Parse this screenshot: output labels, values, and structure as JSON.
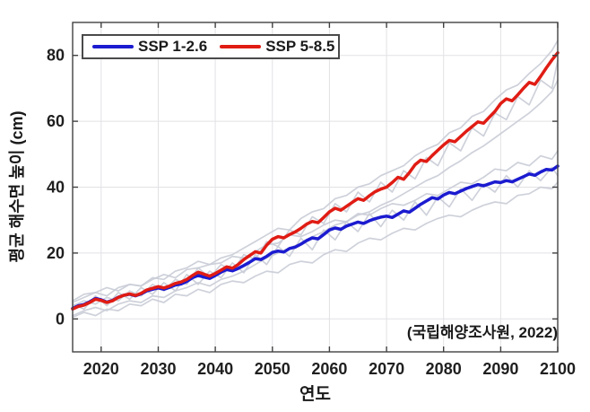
{
  "chart_data": {
    "type": "line",
    "xlabel": "연도",
    "ylabel": "평균 해수면 높이 (cm)",
    "annotation": "(국립해양조사원, 2022)",
    "xlim": [
      2015,
      2100
    ],
    "ylim": [
      -10,
      90
    ],
    "xticks": [
      2020,
      2030,
      2040,
      2050,
      2060,
      2070,
      2080,
      2090,
      2100
    ],
    "yticks": [
      0,
      20,
      40,
      60,
      80
    ],
    "grid": true,
    "legend_position": "top-left-inside",
    "legend": [
      "SSP 1-2.6",
      "SSP 5-8.5"
    ],
    "colors": {
      "ssp126": "#1b1bd0",
      "ssp585": "#e01c14",
      "ensemble": "#c9ccd6",
      "grid": "#e2e2e6",
      "axis": "#414141",
      "text": "#1f1f1f"
    },
    "series": [
      {
        "name": "SSP 1-2.6 ensemble member 1",
        "role": "ensemble",
        "color_key": "ensemble",
        "x": [
          2015,
          2017,
          2019,
          2021,
          2023,
          2025,
          2027,
          2029,
          2031,
          2033,
          2035,
          2037,
          2039,
          2041,
          2043,
          2045,
          2047,
          2049,
          2051,
          2053,
          2055,
          2057,
          2059,
          2061,
          2063,
          2065,
          2067,
          2069,
          2071,
          2073,
          2075,
          2077,
          2079,
          2081,
          2083,
          2085,
          2087,
          2089,
          2091,
          2093,
          2095,
          2097,
          2099,
          2100
        ],
        "values": [
          5.5,
          7.5,
          8.0,
          9.5,
          8.5,
          10.5,
          10.0,
          12.0,
          13.5,
          12.5,
          15.0,
          15.5,
          16.5,
          17.0,
          19.0,
          18.5,
          20.5,
          22.5,
          23.0,
          25.5,
          25.0,
          26.5,
          28.5,
          30.0,
          29.5,
          32.0,
          31.5,
          33.5,
          35.0,
          34.5,
          36.0,
          38.0,
          37.5,
          39.5,
          41.5,
          41.0,
          43.0,
          45.5,
          45.0,
          47.5,
          46.5,
          49.5,
          48.5,
          51.0
        ]
      },
      {
        "name": "SSP 1-2.6 ensemble member 2",
        "role": "ensemble",
        "color_key": "ensemble",
        "x": [
          2015,
          2017,
          2019,
          2021,
          2023,
          2025,
          2027,
          2029,
          2031,
          2033,
          2035,
          2037,
          2039,
          2041,
          2043,
          2045,
          2047,
          2049,
          2051,
          2053,
          2055,
          2057,
          2059,
          2061,
          2063,
          2065,
          2067,
          2069,
          2071,
          2073,
          2075,
          2077,
          2079,
          2081,
          2083,
          2085,
          2087,
          2089,
          2091,
          2093,
          2095,
          2097,
          2099,
          2100
        ],
        "values": [
          0.5,
          2.0,
          1.0,
          3.0,
          2.5,
          4.5,
          4.0,
          6.0,
          5.0,
          7.5,
          7.0,
          9.0,
          8.0,
          10.5,
          11.5,
          11.0,
          13.0,
          14.5,
          14.0,
          16.5,
          17.5,
          17.0,
          19.5,
          21.0,
          20.5,
          23.0,
          24.5,
          24.0,
          26.0,
          27.5,
          27.0,
          29.0,
          30.5,
          31.5,
          31.0,
          33.0,
          34.5,
          35.5,
          35.0,
          37.5,
          38.0,
          40.0,
          39.5,
          41.5
        ]
      },
      {
        "name": "SSP 1-2.6 ensemble member 3",
        "role": "ensemble",
        "color_key": "ensemble",
        "x": [
          2015,
          2017,
          2019,
          2021,
          2023,
          2025,
          2027,
          2029,
          2031,
          2033,
          2035,
          2037,
          2039,
          2041,
          2043,
          2045,
          2047,
          2049,
          2051,
          2053,
          2055,
          2057,
          2059,
          2061,
          2063,
          2065,
          2067,
          2069,
          2071,
          2073,
          2075,
          2077,
          2079,
          2081,
          2083,
          2085,
          2087,
          2089,
          2091,
          2093,
          2095,
          2097,
          2099,
          2100
        ],
        "values": [
          4.5,
          3.0,
          7.0,
          4.0,
          8.0,
          6.0,
          9.5,
          7.5,
          11.0,
          8.5,
          13.5,
          10.5,
          14.5,
          12.5,
          17.0,
          14.0,
          19.5,
          16.5,
          22.0,
          19.0,
          24.5,
          21.0,
          27.0,
          24.0,
          29.5,
          26.5,
          32.0,
          28.0,
          33.0,
          30.0,
          35.5,
          31.5,
          37.0,
          34.0,
          39.5,
          36.0,
          41.0,
          38.5,
          43.5,
          40.0,
          45.0,
          42.0,
          46.0,
          43.5
        ]
      },
      {
        "name": "SSP 5-8.5 ensemble member 1",
        "role": "ensemble",
        "color_key": "ensemble",
        "x": [
          2015,
          2017,
          2019,
          2021,
          2023,
          2025,
          2027,
          2029,
          2031,
          2033,
          2035,
          2037,
          2039,
          2041,
          2043,
          2045,
          2047,
          2049,
          2051,
          2053,
          2055,
          2057,
          2059,
          2061,
          2063,
          2065,
          2067,
          2069,
          2071,
          2073,
          2075,
          2077,
          2079,
          2081,
          2083,
          2085,
          2087,
          2089,
          2091,
          2093,
          2095,
          2097,
          2099,
          2100
        ],
        "values": [
          5.0,
          6.5,
          8.0,
          7.0,
          9.5,
          10.5,
          10.0,
          12.5,
          12.0,
          14.5,
          15.5,
          17.5,
          16.5,
          18.5,
          19.5,
          21.5,
          23.5,
          25.5,
          27.5,
          27.0,
          30.5,
          32.5,
          33.5,
          36.5,
          37.5,
          40.0,
          41.0,
          43.5,
          45.0,
          46.5,
          49.5,
          51.5,
          53.0,
          56.5,
          58.0,
          61.5,
          63.0,
          66.5,
          69.5,
          71.0,
          74.5,
          77.5,
          81.5,
          84.5
        ]
      },
      {
        "name": "SSP 5-8.5 ensemble member 2",
        "role": "ensemble",
        "color_key": "ensemble",
        "x": [
          2015,
          2017,
          2019,
          2021,
          2023,
          2025,
          2027,
          2029,
          2031,
          2033,
          2035,
          2037,
          2039,
          2041,
          2043,
          2045,
          2047,
          2049,
          2051,
          2053,
          2055,
          2057,
          2059,
          2061,
          2063,
          2065,
          2067,
          2069,
          2071,
          2073,
          2075,
          2077,
          2079,
          2081,
          2083,
          2085,
          2087,
          2089,
          2091,
          2093,
          2095,
          2097,
          2099,
          2100
        ],
        "values": [
          1.0,
          2.5,
          3.5,
          2.5,
          4.5,
          5.5,
          5.0,
          7.0,
          6.5,
          8.5,
          9.5,
          11.0,
          10.0,
          12.0,
          13.0,
          14.5,
          16.5,
          18.5,
          20.0,
          21.5,
          23.0,
          25.0,
          26.5,
          28.5,
          29.5,
          31.5,
          32.5,
          34.5,
          36.0,
          38.0,
          40.0,
          42.0,
          43.5,
          46.0,
          48.0,
          50.5,
          52.5,
          55.0,
          57.5,
          60.0,
          62.5,
          65.5,
          69.0,
          72.5
        ]
      },
      {
        "name": "SSP 5-8.5 ensemble member 3",
        "role": "ensemble",
        "color_key": "ensemble",
        "x": [
          2015,
          2017,
          2019,
          2021,
          2023,
          2025,
          2027,
          2029,
          2031,
          2033,
          2035,
          2037,
          2039,
          2041,
          2043,
          2045,
          2047,
          2049,
          2051,
          2053,
          2055,
          2057,
          2059,
          2061,
          2063,
          2065,
          2067,
          2069,
          2071,
          2073,
          2075,
          2077,
          2079,
          2081,
          2083,
          2085,
          2087,
          2089,
          2091,
          2093,
          2095,
          2097,
          2099,
          2100
        ],
        "values": [
          4.0,
          5.5,
          4.5,
          6.5,
          5.5,
          8.5,
          7.0,
          10.5,
          8.5,
          12.0,
          10.5,
          15.5,
          12.5,
          16.5,
          14.5,
          19.5,
          18.0,
          23.5,
          22.0,
          27.0,
          25.5,
          31.0,
          29.0,
          35.0,
          32.5,
          38.5,
          35.5,
          41.5,
          38.5,
          45.0,
          42.5,
          49.0,
          46.5,
          53.5,
          51.0,
          58.0,
          55.5,
          62.5,
          60.5,
          67.5,
          65.0,
          72.5,
          70.0,
          78.5
        ]
      },
      {
        "name": "SSP 1-2.6",
        "role": "mean",
        "color_key": "ssp126",
        "x": [
          2015,
          2016,
          2017,
          2018,
          2019,
          2020,
          2021,
          2022,
          2023,
          2024,
          2025,
          2026,
          2027,
          2028,
          2029,
          2030,
          2031,
          2032,
          2033,
          2034,
          2035,
          2036,
          2037,
          2038,
          2039,
          2040,
          2041,
          2042,
          2043,
          2044,
          2045,
          2046,
          2047,
          2048,
          2049,
          2050,
          2051,
          2052,
          2053,
          2054,
          2055,
          2056,
          2057,
          2058,
          2059,
          2060,
          2061,
          2062,
          2063,
          2064,
          2065,
          2066,
          2067,
          2068,
          2069,
          2070,
          2071,
          2072,
          2073,
          2074,
          2075,
          2076,
          2077,
          2078,
          2079,
          2080,
          2081,
          2082,
          2083,
          2084,
          2085,
          2086,
          2087,
          2088,
          2089,
          2090,
          2091,
          2092,
          2093,
          2094,
          2095,
          2096,
          2097,
          2098,
          2099,
          2100
        ],
        "values": [
          3.2,
          4.0,
          4.4,
          5.2,
          6.2,
          5.8,
          5.1,
          5.6,
          6.6,
          7.2,
          7.5,
          7.0,
          7.6,
          8.5,
          9.0,
          9.4,
          9.0,
          9.6,
          10.3,
          10.6,
          11.4,
          12.5,
          13.2,
          12.7,
          12.3,
          13.2,
          14.2,
          15.0,
          14.6,
          15.3,
          16.2,
          17.2,
          18.3,
          18.0,
          19.0,
          20.2,
          20.6,
          20.3,
          21.4,
          21.8,
          22.7,
          23.8,
          24.6,
          24.3,
          25.6,
          27.0,
          27.6,
          27.2,
          28.2,
          28.8,
          29.4,
          29.0,
          29.8,
          30.4,
          30.9,
          31.2,
          30.8,
          31.8,
          32.8,
          32.4,
          33.6,
          34.8,
          35.8,
          36.8,
          36.4,
          37.6,
          38.4,
          38.0,
          38.8,
          39.6,
          40.2,
          40.8,
          40.4,
          41.0,
          41.6,
          41.4,
          42.0,
          41.6,
          42.4,
          43.2,
          44.0,
          43.6,
          44.6,
          45.4,
          45.2,
          46.4
        ]
      },
      {
        "name": "SSP 5-8.5",
        "role": "mean",
        "color_key": "ssp585",
        "x": [
          2015,
          2016,
          2017,
          2018,
          2019,
          2020,
          2021,
          2022,
          2023,
          2024,
          2025,
          2026,
          2027,
          2028,
          2029,
          2030,
          2031,
          2032,
          2033,
          2034,
          2035,
          2036,
          2037,
          2038,
          2039,
          2040,
          2041,
          2042,
          2043,
          2044,
          2045,
          2046,
          2047,
          2048,
          2049,
          2050,
          2051,
          2052,
          2053,
          2054,
          2055,
          2056,
          2057,
          2058,
          2059,
          2060,
          2061,
          2062,
          2063,
          2064,
          2065,
          2066,
          2067,
          2068,
          2069,
          2070,
          2071,
          2072,
          2073,
          2074,
          2075,
          2076,
          2077,
          2078,
          2079,
          2080,
          2081,
          2082,
          2083,
          2084,
          2085,
          2086,
          2087,
          2088,
          2089,
          2090,
          2091,
          2092,
          2093,
          2094,
          2095,
          2096,
          2097,
          2098,
          2099,
          2100
        ],
        "values": [
          3.0,
          3.8,
          4.2,
          5.0,
          6.0,
          5.6,
          5.0,
          5.5,
          6.5,
          7.2,
          7.6,
          7.1,
          7.8,
          8.8,
          9.3,
          9.8,
          9.4,
          10.0,
          10.8,
          11.2,
          12.0,
          13.2,
          14.2,
          13.6,
          13.0,
          13.8,
          14.8,
          15.8,
          15.4,
          16.5,
          18.0,
          19.2,
          20.4,
          20.0,
          22.4,
          24.2,
          25.0,
          24.6,
          25.6,
          26.4,
          27.5,
          28.8,
          29.6,
          29.2,
          30.8,
          32.5,
          33.6,
          33.0,
          34.2,
          35.4,
          36.5,
          36.0,
          37.4,
          38.6,
          39.4,
          40.0,
          41.4,
          43.0,
          42.4,
          44.4,
          46.8,
          48.2,
          47.8,
          49.6,
          51.2,
          52.8,
          54.2,
          53.8,
          55.4,
          57.0,
          58.4,
          59.8,
          59.4,
          61.2,
          63.0,
          65.4,
          66.8,
          66.2,
          68.0,
          70.0,
          71.8,
          71.2,
          73.6,
          76.2,
          78.6,
          80.8
        ]
      }
    ]
  }
}
